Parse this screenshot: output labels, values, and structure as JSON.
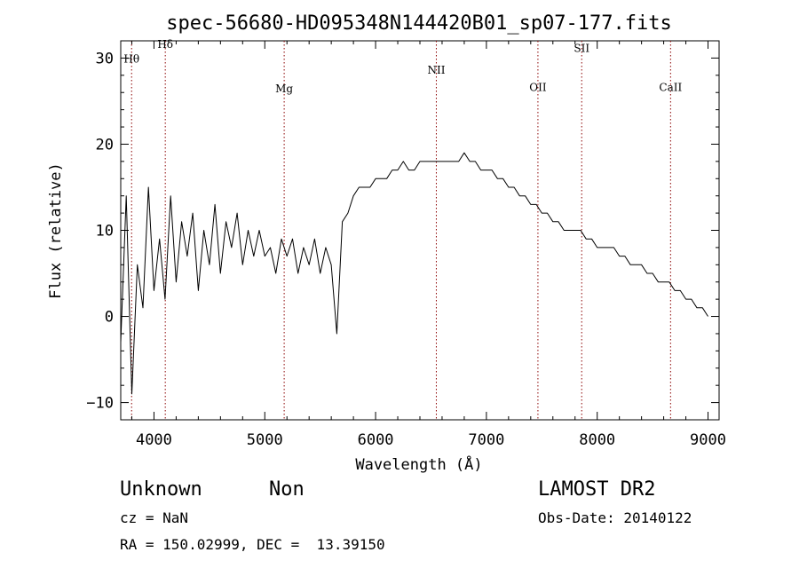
{
  "chart_data": {
    "type": "line",
    "title": "spec-56680-HD095348N144420B01_sp07-177.fits",
    "xlabel": "Wavelength (Å)",
    "ylabel": "Flux (relative)",
    "xlim": [
      3700,
      9100
    ],
    "ylim": [
      -12,
      32
    ],
    "x_ticks": [
      4000,
      5000,
      6000,
      7000,
      8000,
      9000
    ],
    "y_ticks": [
      -10,
      0,
      10,
      20,
      30
    ],
    "grid": false,
    "legend": "none",
    "line_color": "#000000",
    "marker_color": "#8b0000",
    "spectral_lines": [
      {
        "label": "Hθ",
        "wavelength": 3798,
        "label_level": 29.5
      },
      {
        "label": "Hδ",
        "wavelength": 4102,
        "label_level": 31.2
      },
      {
        "label": "Mg",
        "wavelength": 5175,
        "label_level": 26.0
      },
      {
        "label": "NII",
        "wavelength": 6548,
        "label_level": 28.2
      },
      {
        "label": "OII",
        "wavelength": 7465,
        "label_level": 26.2
      },
      {
        "label": "SII",
        "wavelength": 7860,
        "label_level": 30.7
      },
      {
        "label": "CaII",
        "wavelength": 8662,
        "label_level": 26.2
      }
    ],
    "series": [
      {
        "x": [
          3700,
          3750,
          3800,
          3850,
          3900,
          3950,
          4000,
          4050,
          4100,
          4150,
          4200,
          4250,
          4300,
          4350,
          4400,
          4450,
          4500,
          4550,
          4600,
          4650,
          4700,
          4750,
          4800,
          4850,
          4900,
          4950,
          5000,
          5050,
          5100,
          5150,
          5200,
          5250,
          5300,
          5350,
          5400,
          5450,
          5500,
          5550,
          5600,
          5650,
          5700,
          5750,
          5800,
          5850,
          5900,
          5950,
          6000,
          6050,
          6100,
          6150,
          6200,
          6250,
          6300,
          6350,
          6400,
          6450,
          6500,
          6550,
          6600,
          6650,
          6700,
          6750,
          6800,
          6850,
          6900,
          6950,
          7000,
          7050,
          7100,
          7150,
          7200,
          7250,
          7300,
          7350,
          7400,
          7450,
          7500,
          7550,
          7600,
          7650,
          7700,
          7750,
          7800,
          7850,
          7900,
          7950,
          8000,
          8050,
          8100,
          8150,
          8200,
          8250,
          8300,
          8350,
          8400,
          8450,
          8500,
          8550,
          8600,
          8650,
          8700,
          8750,
          8800,
          8850,
          8900,
          8950,
          9000
        ],
        "y": [
          -3,
          14,
          -9,
          6,
          1,
          15,
          3,
          9,
          2,
          14,
          4,
          11,
          7,
          12,
          3,
          10,
          6,
          13,
          5,
          11,
          8,
          12,
          6,
          10,
          7,
          10,
          7,
          8,
          5,
          9,
          7,
          9,
          5,
          8,
          6,
          9,
          5,
          8,
          6,
          -2,
          11,
          12,
          14,
          15,
          15,
          15,
          16,
          16,
          16,
          17,
          17,
          18,
          17,
          17,
          18,
          18,
          18,
          18,
          18,
          18,
          18,
          18,
          19,
          18,
          18,
          17,
          17,
          17,
          16,
          16,
          15,
          15,
          14,
          14,
          13,
          13,
          12,
          12,
          11,
          11,
          10,
          10,
          10,
          10,
          9,
          9,
          8,
          8,
          8,
          8,
          7,
          7,
          6,
          6,
          6,
          5,
          5,
          4,
          4,
          4,
          3,
          3,
          2,
          2,
          1,
          1,
          0
        ]
      }
    ]
  },
  "info": {
    "object_class": "Unknown",
    "object_subclass": "Non",
    "survey": "LAMOST DR2",
    "redshift": "cz = NaN",
    "obs_date": "Obs-Date: 20140122",
    "coordinates": "RA = 150.02999, DEC =  13.39150"
  }
}
